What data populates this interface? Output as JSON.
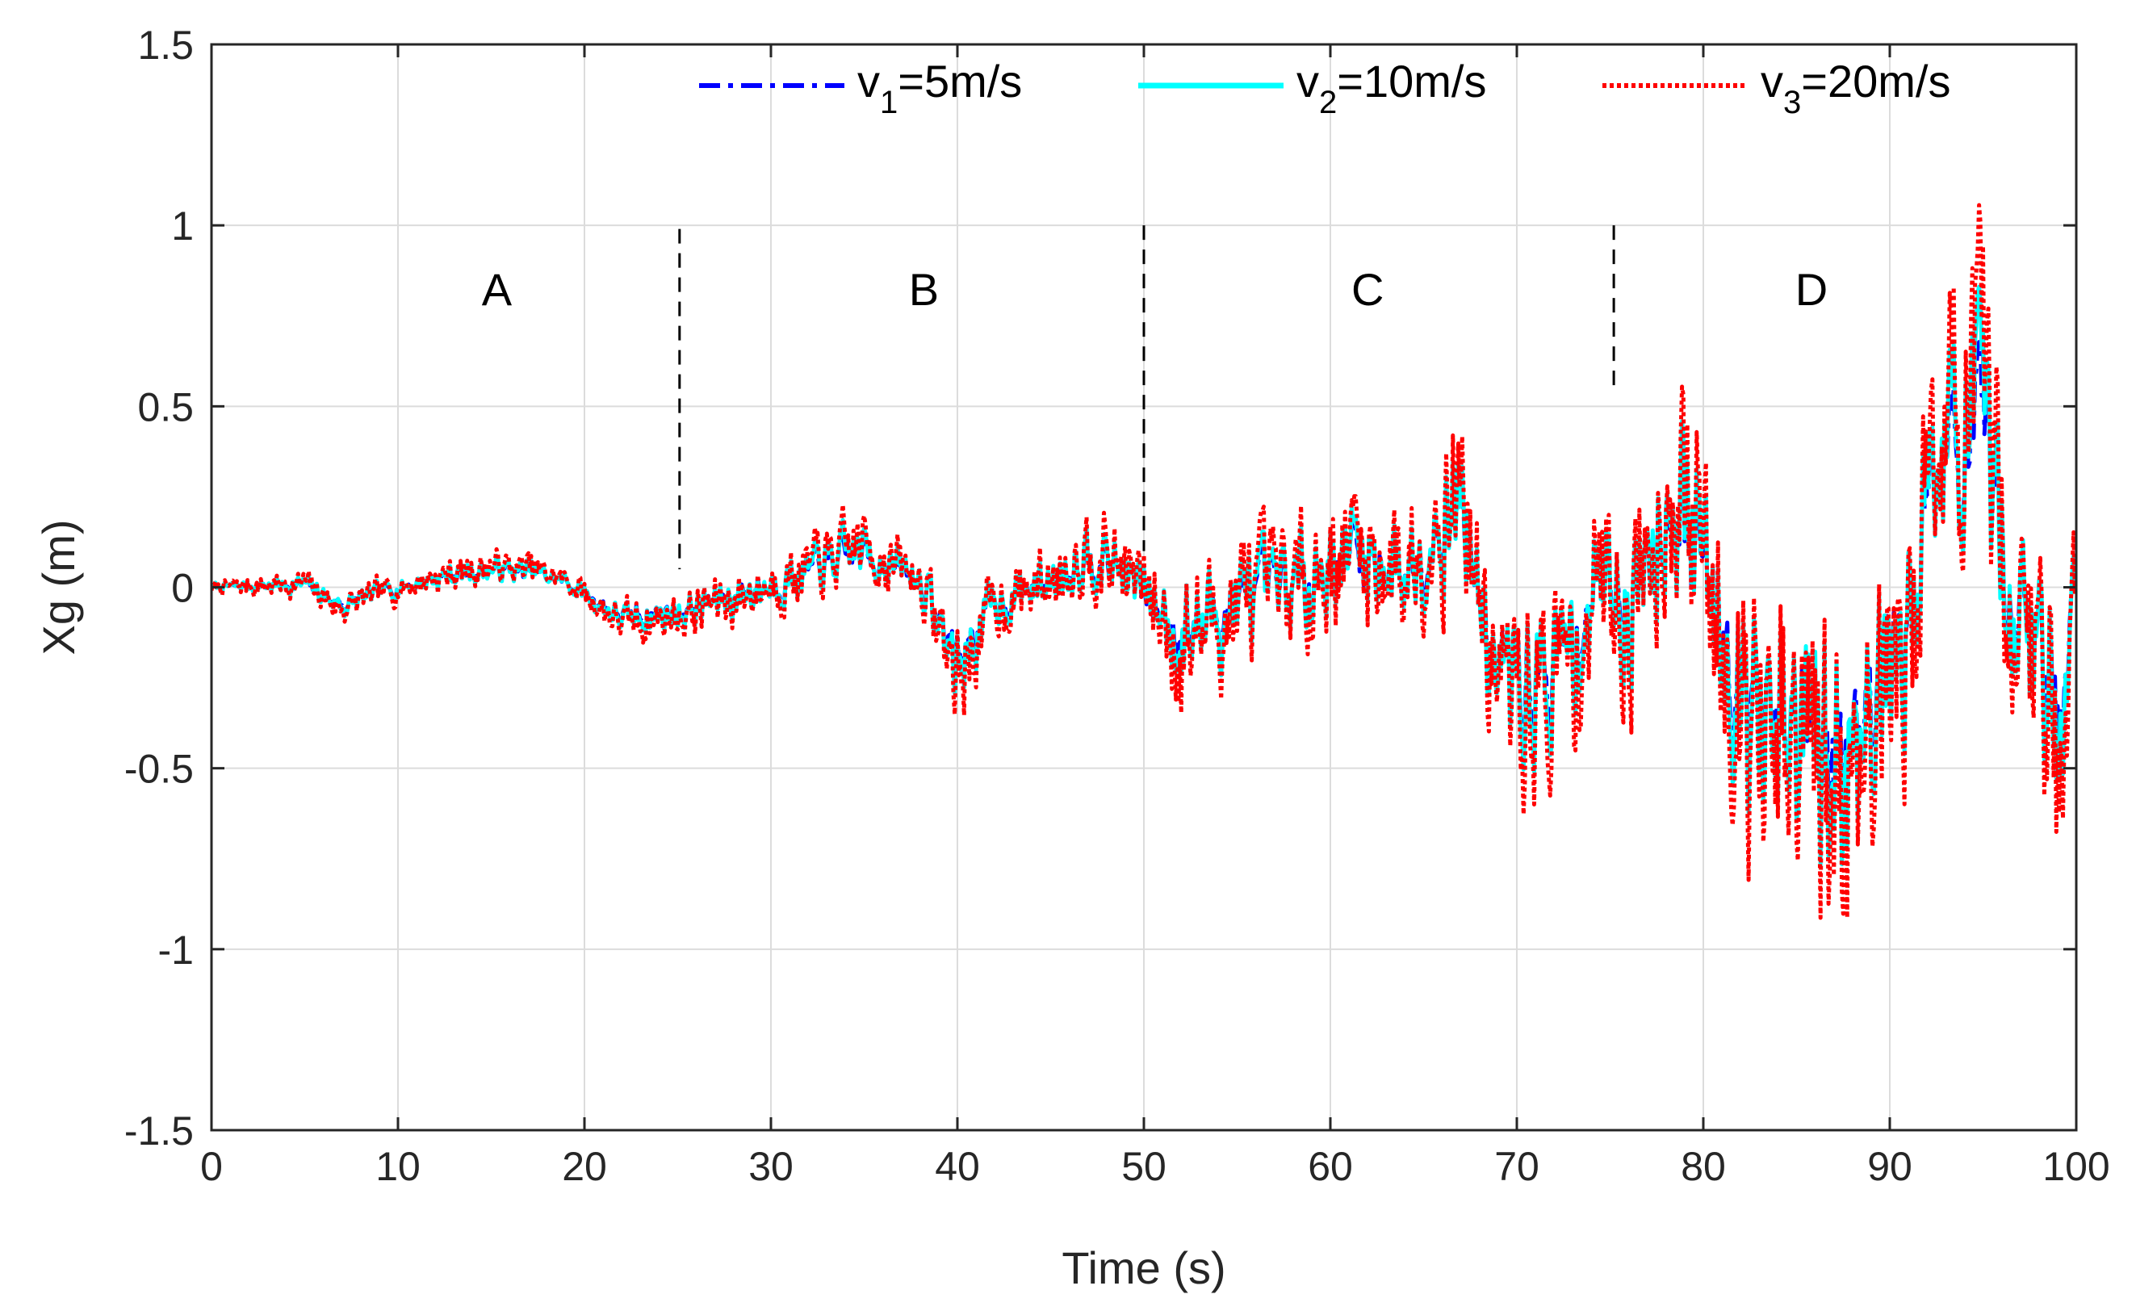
{
  "chart_data": {
    "type": "line",
    "title": "",
    "xlabel": "Time (s)",
    "ylabel": "Xg (m)",
    "xlim": [
      0,
      100
    ],
    "ylim": [
      -1.5,
      1.5
    ],
    "xticks": [
      0,
      10,
      20,
      30,
      40,
      50,
      60,
      70,
      80,
      90,
      100
    ],
    "yticks": [
      1.5,
      1,
      0.5,
      0,
      -0.5,
      -1,
      -1.5
    ],
    "xtick_labels": [
      "0",
      "10",
      "20",
      "30",
      "40",
      "50",
      "60",
      "70",
      "80",
      "90",
      "100"
    ],
    "ytick_labels": [
      "1.5",
      "1",
      "0.5",
      "0",
      "-0.5",
      "-1",
      "-1.5"
    ],
    "grid": true,
    "legend_position": "top-right",
    "regions": [
      {
        "label": "A",
        "x": 15.3
      },
      {
        "label": "B",
        "x": 38.2
      },
      {
        "label": "C",
        "x": 62.0
      },
      {
        "label": "D",
        "x": 85.8
      }
    ],
    "dividers": [
      {
        "x": 25.1,
        "y_top": 0.99,
        "y_bottom": 0.05
      },
      {
        "x": 50.0,
        "y_top": 1.0,
        "y_bottom": 0.1
      },
      {
        "x": 75.2,
        "y_top": 1.0,
        "y_bottom": 0.55
      }
    ],
    "envelope": {
      "x": [
        0,
        5,
        7,
        10,
        12,
        15,
        17,
        19,
        22,
        25,
        28,
        32,
        35,
        38,
        40,
        42,
        45,
        47,
        49,
        50,
        52,
        55,
        58,
        61,
        64,
        67,
        68,
        69,
        71,
        73,
        75,
        76,
        78,
        80,
        82,
        84,
        86,
        87,
        89,
        91,
        92,
        94,
        95,
        97,
        99,
        100
      ],
      "center": [
        0.0,
        0.01,
        -0.06,
        0.0,
        0.03,
        0.06,
        0.05,
        0.02,
        -0.1,
        -0.08,
        -0.03,
        0.05,
        0.12,
        0.02,
        -0.25,
        -0.05,
        0.02,
        0.12,
        0.05,
        -0.02,
        -0.15,
        -0.05,
        0.0,
        0.12,
        0.05,
        0.3,
        -0.05,
        -0.3,
        -0.3,
        -0.2,
        0.1,
        -0.1,
        0.35,
        0.1,
        -0.3,
        -0.55,
        -0.55,
        -0.6,
        -0.3,
        -0.15,
        0.35,
        0.5,
        0.45,
        -0.1,
        -0.35,
        0.0
      ],
      "amp": [
        0.02,
        0.04,
        0.05,
        0.04,
        0.05,
        0.05,
        0.05,
        0.04,
        0.06,
        0.07,
        0.09,
        0.09,
        0.11,
        0.08,
        0.18,
        0.1,
        0.1,
        0.13,
        0.12,
        0.14,
        0.22,
        0.2,
        0.18,
        0.22,
        0.2,
        0.28,
        0.22,
        0.3,
        0.32,
        0.28,
        0.3,
        0.3,
        0.42,
        0.35,
        0.4,
        0.5,
        0.6,
        0.65,
        0.45,
        0.35,
        0.35,
        0.5,
        0.45,
        0.4,
        0.45,
        0.3
      ]
    },
    "series": [
      {
        "name": "v1=5m/s",
        "label_main": "v",
        "label_sub": "1",
        "label_rest": "=5m/s",
        "color": "#0000ff",
        "style": "dash-dot",
        "scale": 0.55,
        "seed": 11
      },
      {
        "name": "v2=10m/s",
        "label_main": "v",
        "label_sub": "2",
        "label_rest": "=10m/s",
        "color": "#00ffff",
        "style": "solid",
        "scale": 0.72,
        "seed": 23
      },
      {
        "name": "v3=20m/s",
        "label_main": "v",
        "label_sub": "3",
        "label_rest": "=20m/s",
        "color": "#ff0000",
        "style": "dotted",
        "scale": 1.0,
        "seed": 37
      }
    ]
  }
}
